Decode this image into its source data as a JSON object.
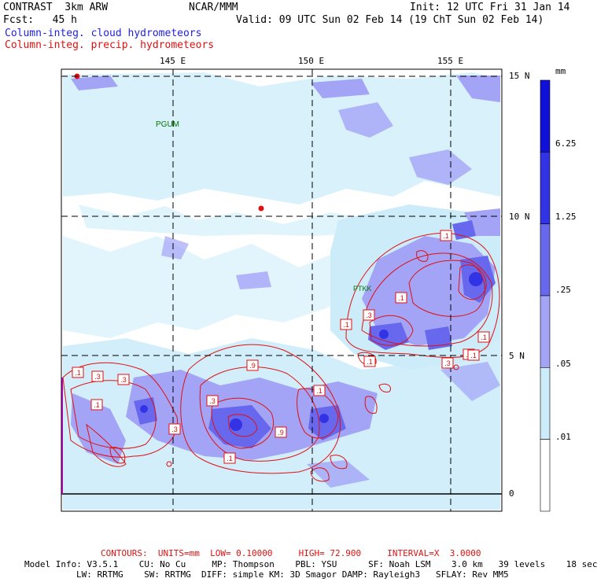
{
  "header": {
    "model": "CONTRAST  3km ARW",
    "center": "NCAR/MMM",
    "init": "Init: 12 UTC Fri 31 Jan 14",
    "fcst": "Fcst:   45 h",
    "valid": "Valid: 09 UTC Sun 02 Feb 14 (19 ChT Sun 02 Feb 14)",
    "field1": "Column-integ. cloud hydrometeors",
    "field2": "Column-integ. precip. hydrometeors"
  },
  "map": {
    "lon_labels": [
      "145 E",
      "150 E",
      "155 E"
    ],
    "lat_labels": [
      "15 N",
      "10 N",
      "5 N",
      "0"
    ],
    "stations": [
      {
        "name": "PGUM"
      },
      {
        "name": "PTKK"
      }
    ],
    "contour_labels": [
      ".1",
      ".1",
      ".1",
      ".3",
      ".1",
      ".3",
      ".3",
      ".1",
      ".9",
      ".3",
      ".3",
      ".9",
      ".1",
      ".9",
      ".1",
      ".1",
      ".3",
      ".1",
      ".1"
    ]
  },
  "colorbar": {
    "unit": "mm",
    "labels": [
      "6.25",
      "1.25",
      ".25",
      ".05",
      ".01"
    ],
    "colors": [
      "#1010d8",
      "#3333e6",
      "#6868ee",
      "#a4a4f6",
      "#ccecfa",
      "#ffffff"
    ]
  },
  "footer": {
    "contours": "CONTOURS:  UNITS=mm  LOW= 0.10000     HIGH= 72.900     INTERVAL=X  3.0000",
    "model_info_1": "Model Info: V3.5.1    CU: No Cu     MP: Thompson    PBL: YSU      SF: Noah LSM    3.0 km   39 levels    18 sec",
    "model_info_2": "LW: RRTMG    SW: RRTMG  DIFF: simple KM: 3D Smagor DAMP: Rayleigh3   SFLAY: Rev MM5"
  },
  "colors": {
    "cloud_light": "#ccecfa",
    "cloud_mid": "#a4a4f6",
    "cloud_dark": "#6868ee",
    "precip_contour": "#e01010",
    "station": "#007700",
    "equator_line": "#cc00cc"
  }
}
